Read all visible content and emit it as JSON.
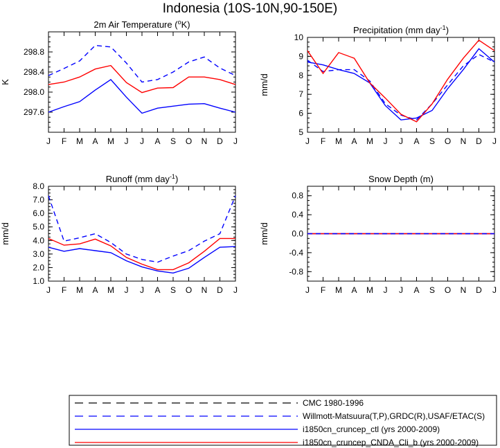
{
  "main_title": "Indonesia (10S-10N,90-150E)",
  "colors": {
    "red": "#ff0000",
    "blue": "#0000ff",
    "black": "#000000"
  },
  "months": [
    "J",
    "F",
    "M",
    "A",
    "M",
    "J",
    "J",
    "A",
    "S",
    "O",
    "N",
    "D",
    "J"
  ],
  "legend": [
    {
      "label": "CMC 1980-1996",
      "color": "#000000",
      "dash": true
    },
    {
      "label": "Willmott-Matsuura(T,P),GRDC(R),USAF/ETAC(S)",
      "color": "#0000ff",
      "dash": true
    },
    {
      "label": "i1850cn_cruncep_ctl (yrs 2000-2009)",
      "color": "#0000ff",
      "dash": false
    },
    {
      "label": "i1850cn_cruncep_CNDA_Cli_b (yrs 2000-2009)",
      "color": "#ff0000",
      "dash": false
    }
  ],
  "chart_data": [
    {
      "type": "line",
      "title_main": "2m Air Temperature (",
      "title_sup": "o",
      "title_end": "K)",
      "ylabel": "K",
      "ylim": [
        297.2,
        299.2
      ],
      "yticks": [
        "298.8",
        "298.4",
        "298.0",
        "297.6"
      ],
      "ytick_values": [
        298.8,
        298.4,
        298.0,
        297.6
      ],
      "series": [
        {
          "name": "Willmott-Matsuura(T,P),GRDC(R),USAF/ETAC(S)",
          "color": "#0000ff",
          "dash": true,
          "values": [
            298.33,
            298.47,
            298.62,
            298.93,
            298.9,
            298.58,
            298.2,
            298.25,
            298.4,
            298.6,
            298.7,
            298.48,
            298.33
          ]
        },
        {
          "name": "i1850cn_cruncep_ctl (yrs 2000-2009)",
          "color": "#0000ff",
          "dash": false,
          "values": [
            297.6,
            297.71,
            297.81,
            298.04,
            298.25,
            297.9,
            297.58,
            297.68,
            297.72,
            297.76,
            297.77,
            297.68,
            297.6
          ]
        },
        {
          "name": "i1850cn_cruncep_CNDA_Cli_b (yrs 2000-2009)",
          "color": "#ff0000",
          "dash": false,
          "values": [
            298.15,
            298.2,
            298.3,
            298.46,
            298.53,
            298.19,
            297.99,
            298.08,
            298.09,
            298.3,
            298.3,
            298.25,
            298.15
          ]
        }
      ]
    },
    {
      "type": "line",
      "title_main": "Precipitation (mm day",
      "title_sup": "-1",
      "title_end": ")",
      "ylabel": "mm/d",
      "ylim": [
        5,
        10
      ],
      "yticks": [
        "10",
        "9",
        "8",
        "7",
        "6",
        "5"
      ],
      "ytick_values": [
        10,
        9,
        8,
        7,
        6,
        5
      ],
      "series": [
        {
          "name": "Willmott-Matsuura(T,P),GRDC(R),USAF/ETAC(S)",
          "color": "#0000ff",
          "dash": true,
          "values": [
            8.8,
            8.2,
            8.3,
            8.3,
            7.7,
            6.5,
            5.9,
            5.65,
            6.5,
            7.5,
            8.5,
            9.1,
            8.7
          ]
        },
        {
          "name": "i1850cn_cruncep_ctl (yrs 2000-2009)",
          "color": "#0000ff",
          "dash": false,
          "values": [
            8.7,
            8.55,
            8.3,
            8.1,
            7.6,
            6.4,
            5.65,
            5.75,
            6.15,
            7.3,
            8.3,
            9.4,
            8.7
          ]
        },
        {
          "name": "i1850cn_cruncep_CNDA_Cli_b (yrs 2000-2009)",
          "color": "#ff0000",
          "dash": false,
          "values": [
            9.3,
            8.1,
            9.2,
            8.9,
            7.6,
            6.8,
            5.95,
            5.55,
            6.5,
            7.8,
            8.9,
            9.85,
            9.3
          ]
        }
      ]
    },
    {
      "type": "line",
      "title_main": "Runoff (mm day",
      "title_sup": "-1",
      "title_end": ")",
      "ylabel": "mm/d",
      "ylim": [
        1,
        8
      ],
      "yticks": [
        "8.0",
        "7.0",
        "6.0",
        "5.0",
        "4.0",
        "3.0",
        "2.0",
        "1.0"
      ],
      "ytick_values": [
        8,
        7,
        6,
        5,
        4,
        3,
        2,
        1
      ],
      "series": [
        {
          "name": "Willmott-Matsuura(T,P),GRDC(R),USAF/ETAC(S)",
          "color": "#0000ff",
          "dash": true,
          "values": [
            7.3,
            3.95,
            4.2,
            4.5,
            3.85,
            3.0,
            2.6,
            2.4,
            2.85,
            3.25,
            3.95,
            4.5,
            7.3
          ]
        },
        {
          "name": "i1850cn_cruncep_ctl (yrs 2000-2009)",
          "color": "#0000ff",
          "dash": false,
          "values": [
            3.5,
            3.2,
            3.4,
            3.25,
            3.1,
            2.5,
            2.05,
            1.75,
            1.6,
            1.95,
            2.75,
            3.5,
            3.55
          ]
        },
        {
          "name": "i1850cn_cruncep_CNDA_Cli_b (yrs 2000-2009)",
          "color": "#ff0000",
          "dash": false,
          "values": [
            4.15,
            3.65,
            3.75,
            4.1,
            3.6,
            2.75,
            2.25,
            1.85,
            1.85,
            2.35,
            3.2,
            4.15,
            4.15
          ]
        }
      ]
    },
    {
      "type": "line",
      "title_main": "Snow Depth (m)",
      "title_sup": "",
      "title_end": "",
      "ylabel": "mm/d",
      "ylim": [
        -1,
        1
      ],
      "yticks": [
        "0.8",
        "0.4",
        "0.0",
        "-0.4",
        "-0.8"
      ],
      "ytick_values": [
        0.8,
        0.4,
        0.0,
        -0.4,
        -0.8
      ],
      "series": [
        {
          "name": "i1850cn_cruncep_ctl (yrs 2000-2009)",
          "color": "#0000ff",
          "dash": false,
          "values": [
            0,
            0,
            0,
            0,
            0,
            0,
            0,
            0,
            0,
            0,
            0,
            0,
            0
          ]
        },
        {
          "name": "i1850cn_cruncep_CNDA_Cli_b (yrs 2000-2009)",
          "color": "#ff0000",
          "dash": false,
          "values": [
            0,
            0,
            0,
            0,
            0,
            0,
            0,
            0,
            0,
            0,
            0,
            0,
            0
          ]
        },
        {
          "name": "Willmott-Matsuura(T,P),GRDC(R),USAF/ETAC(S)",
          "color": "#0000ff",
          "dash": true,
          "values": [
            0,
            0,
            0,
            0,
            0,
            0,
            0,
            0,
            0,
            0,
            0,
            0,
            0
          ]
        }
      ]
    }
  ]
}
